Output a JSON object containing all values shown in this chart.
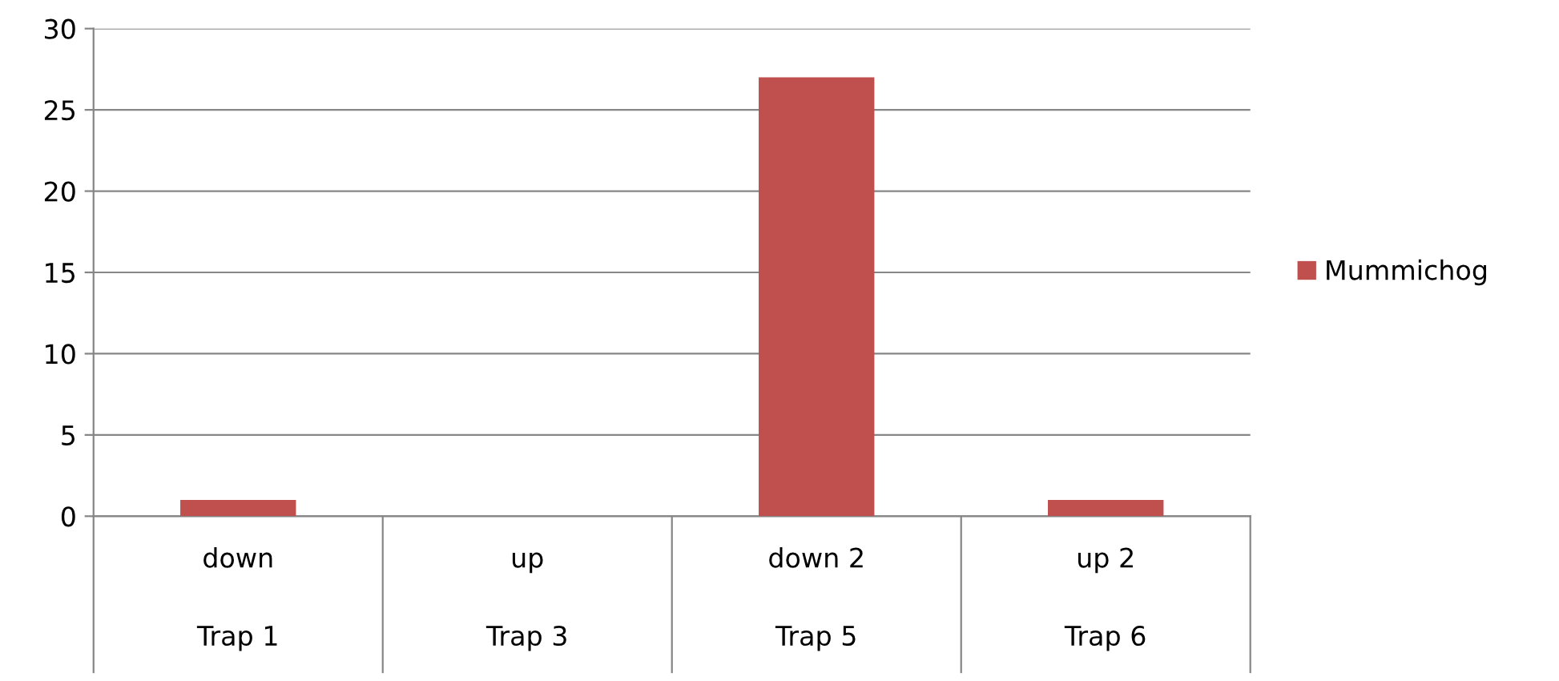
{
  "chart_data": {
    "type": "bar",
    "categories": [
      "down\nTrap 1",
      "up\nTrap 3",
      "down 2\nTrap 5",
      "up 2\nTrap 6"
    ],
    "series": [
      {
        "name": "Mummichog",
        "color": "#c0504d",
        "values": [
          1,
          0,
          27,
          1
        ]
      }
    ],
    "ylim": [
      0,
      30
    ],
    "yticks": [
      0,
      5,
      10,
      15,
      20,
      25,
      30
    ],
    "grid": "y",
    "legend": "right"
  }
}
